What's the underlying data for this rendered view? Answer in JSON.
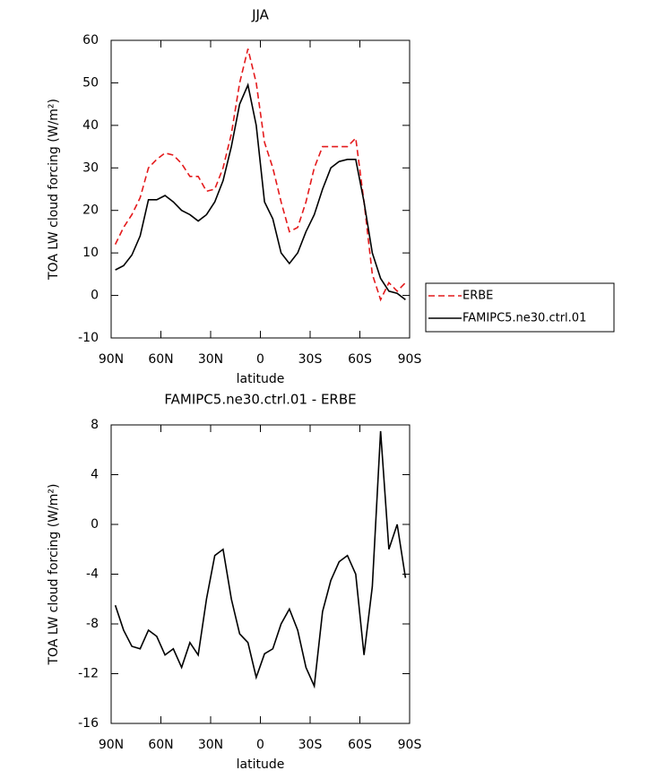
{
  "chart_data": [
    {
      "type": "line",
      "title": "JJA",
      "xlabel": "latitude",
      "ylabel": "TOA LW cloud forcing (W/m²)",
      "x": [
        87.5,
        82.5,
        77.5,
        72.5,
        67.5,
        62.5,
        57.5,
        52.5,
        47.5,
        42.5,
        37.5,
        32.5,
        27.5,
        22.5,
        17.5,
        12.5,
        7.5,
        2.5,
        -2.5,
        -7.5,
        -12.5,
        -17.5,
        -22.5,
        -27.5,
        -32.5,
        -37.5,
        -42.5,
        -47.5,
        -52.5,
        -57.5,
        -62.5,
        -67.5,
        -72.5,
        -77.5,
        -82.5,
        -87.5
      ],
      "series": [
        {
          "name": "ERBE",
          "color": "#e41a1c",
          "linestyle": "dashed",
          "values": [
            12,
            16,
            19,
            23,
            30,
            32,
            33.5,
            33,
            31,
            28,
            28,
            24.5,
            25,
            30,
            38,
            50,
            58,
            50,
            36,
            30,
            22,
            15,
            16,
            22,
            30,
            35,
            35,
            35,
            35,
            37,
            22,
            5,
            -1,
            3,
            1,
            3
          ]
        },
        {
          "name": "FAMIPC5.ne30.ctrl.01",
          "color": "#000000",
          "linestyle": "solid",
          "values": [
            6,
            7,
            9.5,
            14,
            22.5,
            22.5,
            23.5,
            22,
            20,
            19,
            17.5,
            19,
            22,
            27,
            35,
            45,
            49.5,
            40,
            22,
            18,
            10,
            7.5,
            10,
            15,
            19,
            25,
            30,
            31.5,
            32,
            32,
            22,
            10,
            4,
            1,
            0.5,
            -1
          ]
        }
      ],
      "xlim": [
        90,
        -90
      ],
      "xticks": [
        {
          "value": 90,
          "label": "90N"
        },
        {
          "value": 60,
          "label": "60N"
        },
        {
          "value": 30,
          "label": "30N"
        },
        0,
        {
          "value": -30,
          "label": "30S"
        },
        {
          "value": -60,
          "label": "60S"
        },
        {
          "value": -90,
          "label": "90S"
        }
      ],
      "ylim": [
        -10,
        60
      ],
      "yticks": [
        -10,
        0,
        10,
        20,
        30,
        40,
        50,
        60
      ]
    },
    {
      "type": "line",
      "title": "FAMIPC5.ne30.ctrl.01 - ERBE",
      "xlabel": "latitude",
      "ylabel": "TOA LW cloud forcing (W/m²)",
      "x": [
        87.5,
        82.5,
        77.5,
        72.5,
        67.5,
        62.5,
        57.5,
        52.5,
        47.5,
        42.5,
        37.5,
        32.5,
        27.5,
        22.5,
        17.5,
        12.5,
        7.5,
        2.5,
        -2.5,
        -7.5,
        -12.5,
        -17.5,
        -22.5,
        -27.5,
        -32.5,
        -37.5,
        -42.5,
        -47.5,
        -52.5,
        -57.5,
        -62.5,
        -67.5,
        -72.5,
        -77.5,
        -82.5,
        -87.5
      ],
      "color": "#000000",
      "values": [
        -6.5,
        -8.5,
        -9.8,
        -10,
        -8.5,
        -9,
        -10.5,
        -10,
        -11.5,
        -9.5,
        -10.5,
        -6,
        -2.5,
        -2,
        -6,
        -8.8,
        -9.5,
        -12.3,
        -10.4,
        -10,
        -8,
        -6.8,
        -8.5,
        -11.5,
        -13,
        -7,
        -4.5,
        -3,
        -2.5,
        -4,
        -10.5,
        -5,
        7.5,
        -2,
        0,
        -4.3
      ],
      "xlim": [
        90,
        -90
      ],
      "xticks": [
        {
          "value": 90,
          "label": "90N"
        },
        {
          "value": 60,
          "label": "60N"
        },
        {
          "value": 30,
          "label": "30N"
        },
        0,
        {
          "value": -30,
          "label": "30S"
        },
        {
          "value": -60,
          "label": "60S"
        },
        {
          "value": -90,
          "label": "90S"
        }
      ],
      "ylim": [
        -16,
        8
      ],
      "yticks": [
        -16,
        -12,
        -8,
        -4,
        0,
        4,
        8
      ]
    }
  ]
}
